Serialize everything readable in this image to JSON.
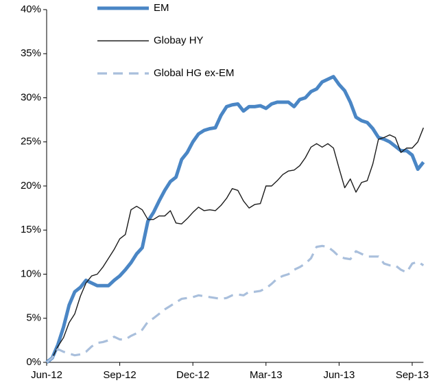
{
  "chart_data": {
    "type": "line",
    "categories": [
      "Jun-12",
      null,
      null,
      null,
      null,
      null,
      null,
      null,
      null,
      null,
      null,
      null,
      null,
      "Sep-12",
      null,
      null,
      null,
      null,
      null,
      null,
      null,
      null,
      null,
      null,
      null,
      null,
      "Dec-12",
      null,
      null,
      null,
      null,
      null,
      null,
      null,
      null,
      null,
      null,
      null,
      null,
      "Mar-13",
      null,
      null,
      null,
      null,
      null,
      null,
      null,
      null,
      null,
      null,
      null,
      null,
      "Jun-13",
      null,
      null,
      null,
      null,
      null,
      null,
      null,
      null,
      null,
      null,
      null,
      null,
      "Sep-13",
      null,
      null
    ],
    "series": [
      {
        "name": "EM",
        "color": "#4a86c5",
        "line_style": "solid",
        "values": [
          0,
          0.5,
          2,
          4,
          6.5,
          8,
          8.5,
          9.3,
          9,
          8.7,
          8.7,
          8.7,
          9.3,
          9.8,
          10.5,
          11.3,
          12.3,
          13,
          16,
          17,
          18.3,
          19.5,
          20.5,
          21,
          23,
          23.8,
          25,
          25.9,
          26.3,
          26.5,
          26.6,
          28,
          29,
          29.2,
          29.3,
          28.5,
          29,
          29,
          29.1,
          28.8,
          29.3,
          29.5,
          29.5,
          29.5,
          29,
          29.8,
          30,
          30.7,
          31,
          31.8,
          32.1,
          32.4,
          31.5,
          30.8,
          29.5,
          27.8,
          27.4,
          27.2,
          26.5,
          25.5,
          25.3,
          25,
          24.5,
          24,
          24,
          23.5,
          21.9,
          22.7
        ]
      },
      {
        "name": "Globay HY",
        "color": "#1a1a1a",
        "line_style": "solid",
        "values": [
          0,
          0.5,
          1.8,
          2.8,
          4.5,
          5.5,
          7.5,
          9,
          9.8,
          10,
          10.8,
          11.8,
          12.8,
          14,
          14.5,
          17.3,
          17.7,
          17.3,
          16.2,
          16.2,
          16.6,
          16.6,
          17.2,
          15.8,
          15.7,
          16.3,
          17,
          17.6,
          17.2,
          17.3,
          17.2,
          17.8,
          18.6,
          19.7,
          19.5,
          18.3,
          17.5,
          17.9,
          18,
          20,
          20,
          20.6,
          21.3,
          21.7,
          21.8,
          22.3,
          23.2,
          24.4,
          24.8,
          24.4,
          24.8,
          24.3,
          22,
          19.8,
          20.8,
          19.3,
          20.4,
          20.6,
          22.5,
          25.3,
          25.5,
          25.8,
          25.5,
          23.8,
          24.3,
          24.3,
          25,
          26.6
        ]
      },
      {
        "name": "Global HG ex-EM",
        "color": "#a9bfdc",
        "line_style": "dashed",
        "values": [
          0,
          0.5,
          1.5,
          1.2,
          1,
          0.8,
          0.9,
          1.2,
          1.8,
          2.2,
          2.3,
          2.5,
          2.9,
          2.6,
          2.6,
          3,
          3.3,
          3.7,
          4.6,
          5,
          5.5,
          6,
          6.4,
          6.8,
          7.2,
          7.3,
          7.4,
          7.6,
          7.5,
          7.4,
          7.3,
          7.2,
          7.3,
          7.6,
          7.7,
          7.6,
          8,
          8,
          8.1,
          8.4,
          8.9,
          9.5,
          9.8,
          10,
          10.5,
          10.8,
          11.2,
          11.8,
          13.1,
          13.2,
          13.1,
          12.6,
          12,
          11.8,
          11.7,
          12.6,
          12.3,
          12,
          12,
          12,
          11.2,
          11,
          11,
          10.5,
          10.2,
          11.2,
          11.4,
          11
        ]
      }
    ],
    "ylim": [
      0,
      40
    ],
    "yticks": [
      {
        "value": 0,
        "label": "0%"
      },
      {
        "value": 5,
        "label": "5%"
      },
      {
        "value": 10,
        "label": "10%"
      },
      {
        "value": 15,
        "label": "15%"
      },
      {
        "value": 20,
        "label": "20%"
      },
      {
        "value": 25,
        "label": "25%"
      },
      {
        "value": 30,
        "label": "30%"
      },
      {
        "value": 35,
        "label": "35%"
      },
      {
        "value": 40,
        "label": "40%"
      }
    ],
    "legend": "top-left",
    "grid": false
  }
}
